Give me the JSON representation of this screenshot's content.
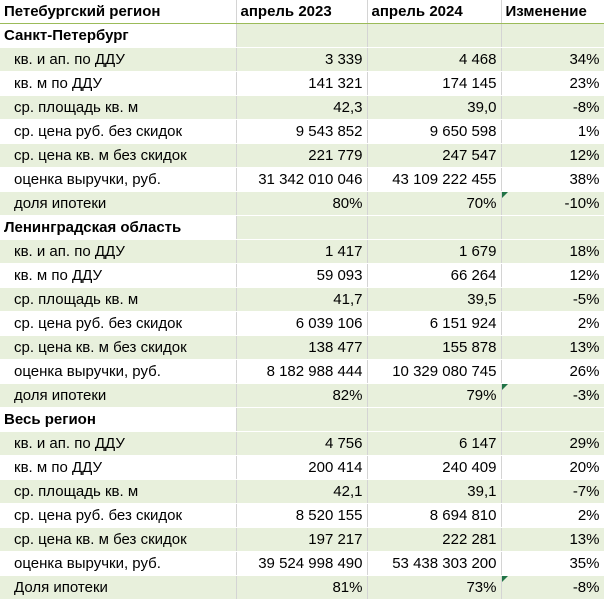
{
  "header": {
    "col0": "Петебургский регион",
    "col1": "апрель 2023",
    "col2": "апрель 2024",
    "col3": "Изменение"
  },
  "sections": [
    {
      "title": "Санкт-Петербург",
      "rows": [
        {
          "label": "кв. и ап. по ДДУ",
          "v2023": "3 339",
          "v2024": "4 468",
          "change": "34%"
        },
        {
          "label": "кв. м по ДДУ",
          "v2023": "141 321",
          "v2024": "174 145",
          "change": "23%"
        },
        {
          "label": "ср. площадь кв. м",
          "v2023": "42,3",
          "v2024": "39,0",
          "change": "-8%"
        },
        {
          "label": "ср. цена руб. без скидок",
          "v2023": "9 543 852",
          "v2024": "9 650 598",
          "change": "1%"
        },
        {
          "label": "ср. цена кв. м без скидок",
          "v2023": "221 779",
          "v2024": "247 547",
          "change": "12%"
        },
        {
          "label": "оценка выручки, руб.",
          "v2023": "31 342 010 046",
          "v2024": "43 109 222 455",
          "change": "38%"
        },
        {
          "label": "доля ипотеки",
          "v2023": "80%",
          "v2024": "70%",
          "change": "-10%",
          "flag": true
        }
      ]
    },
    {
      "title": "Ленинградская область",
      "rows": [
        {
          "label": "кв. и ап. по ДДУ",
          "v2023": "1 417",
          "v2024": "1 679",
          "change": "18%"
        },
        {
          "label": "кв. м по ДДУ",
          "v2023": "59 093",
          "v2024": "66 264",
          "change": "12%"
        },
        {
          "label": "ср. площадь кв. м",
          "v2023": "41,7",
          "v2024": "39,5",
          "change": "-5%"
        },
        {
          "label": "ср. цена руб. без скидок",
          "v2023": "6 039 106",
          "v2024": "6 151 924",
          "change": "2%"
        },
        {
          "label": "ср. цена кв. м без скидок",
          "v2023": "138 477",
          "v2024": "155 878",
          "change": "13%"
        },
        {
          "label": "оценка выручки, руб.",
          "v2023": "8 182 988 444",
          "v2024": "10 329 080 745",
          "change": "26%"
        },
        {
          "label": "доля ипотеки",
          "v2023": "82%",
          "v2024": "79%",
          "change": "-3%",
          "flag": true
        }
      ]
    },
    {
      "title": "Весь регион",
      "rows": [
        {
          "label": "кв. и ап. по ДДУ",
          "v2023": "4 756",
          "v2024": "6 147",
          "change": "29%"
        },
        {
          "label": "кв. м по ДДУ",
          "v2023": "200 414",
          "v2024": "240 409",
          "change": "20%"
        },
        {
          "label": "ср. площадь кв. м",
          "v2023": "42,1",
          "v2024": "39,1",
          "change": "-7%"
        },
        {
          "label": "ср. цена руб. без скидок",
          "v2023": "8 520 155",
          "v2024": "8 694 810",
          "change": "2%"
        },
        {
          "label": "ср. цена кв. м без скидок",
          "v2023": "197 217",
          "v2024": "222 281",
          "change": "13%"
        },
        {
          "label": "оценка выручки, руб.",
          "v2023": "39 524 998 490",
          "v2024": "53 438 303 200",
          "change": "35%"
        },
        {
          "label": "Доля ипотеки",
          "v2023": "81%",
          "v2024": "73%",
          "change": "-8%",
          "flag": true
        }
      ]
    }
  ],
  "colors": {
    "shade": "#e8f0dc",
    "flag": "#217346",
    "header_rule": "#9bbb59"
  }
}
